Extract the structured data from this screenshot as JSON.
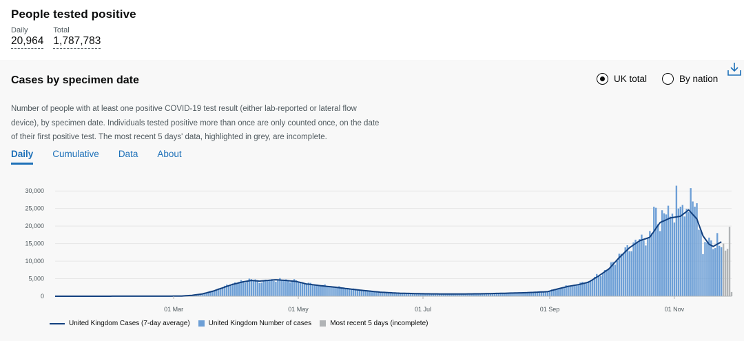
{
  "headline": {
    "title": "People tested positive",
    "daily_label": "Daily",
    "daily_value": "20,964",
    "total_label": "Total",
    "total_value": "1,787,783"
  },
  "card": {
    "title": "Cases by specimen date",
    "description": "Number of people with at least one positive COVID-19 test result (either lab-reported or lateral flow device), by specimen date. Individuals tested positive more than once are only counted once, on the date of their first positive test. The most recent 5 days' data, highlighted in grey, are incomplete.",
    "radio_uk": "UK total",
    "radio_nation": "By nation",
    "download_icon": "download-icon"
  },
  "tabs": [
    {
      "label": "Daily",
      "active": true
    },
    {
      "label": "Cumulative",
      "active": false
    },
    {
      "label": "Data",
      "active": false
    },
    {
      "label": "About",
      "active": false
    }
  ],
  "colors": {
    "bar": "#6d9fd6",
    "line": "#12407f",
    "incomplete": "#b1b4b6"
  },
  "chart_data": {
    "type": "bar",
    "title": "",
    "xlabel": "",
    "ylabel": "",
    "ylim": [
      0,
      32000
    ],
    "x_range": [
      "2020-01-03",
      "2020-11-24"
    ],
    "yticks": [
      "0",
      "5,000",
      "10,000",
      "15,000",
      "20,000",
      "25,000",
      "30,000"
    ],
    "ytick_values": [
      0,
      5000,
      10000,
      15000,
      20000,
      25000,
      30000
    ],
    "xticks": [
      {
        "date": "2020-03-01",
        "label": "01 Mar"
      },
      {
        "date": "2020-05-01",
        "label": "01 May"
      },
      {
        "date": "2020-07-01",
        "label": "01 Jul"
      },
      {
        "date": "2020-09-01",
        "label": "01 Sep"
      },
      {
        "date": "2020-11-01",
        "label": "01 Nov"
      }
    ],
    "daily_anchors": [
      [
        "2020-01-03",
        0
      ],
      [
        "2020-02-28",
        20
      ],
      [
        "2020-03-05",
        60
      ],
      [
        "2020-03-10",
        250
      ],
      [
        "2020-03-15",
        700
      ],
      [
        "2020-03-20",
        1500
      ],
      [
        "2020-03-25",
        2600
      ],
      [
        "2020-03-30",
        3600
      ],
      [
        "2020-04-04",
        4300
      ],
      [
        "2020-04-08",
        4800
      ],
      [
        "2020-04-12",
        4200
      ],
      [
        "2020-04-16",
        4500
      ],
      [
        "2020-04-20",
        4700
      ],
      [
        "2020-04-25",
        4600
      ],
      [
        "2020-04-30",
        4300
      ],
      [
        "2020-05-05",
        3600
      ],
      [
        "2020-05-12",
        3100
      ],
      [
        "2020-05-20",
        2600
      ],
      [
        "2020-05-30",
        1900
      ],
      [
        "2020-06-10",
        1200
      ],
      [
        "2020-06-20",
        900
      ],
      [
        "2020-07-01",
        750
      ],
      [
        "2020-07-15",
        650
      ],
      [
        "2020-07-30",
        750
      ],
      [
        "2020-08-10",
        900
      ],
      [
        "2020-08-20",
        1050
      ],
      [
        "2020-08-31",
        1400
      ],
      [
        "2020-09-05",
        2200
      ],
      [
        "2020-09-10",
        2900
      ],
      [
        "2020-09-15",
        3400
      ],
      [
        "2020-09-20",
        4200
      ],
      [
        "2020-09-25",
        6000
      ],
      [
        "2020-09-30",
        8000
      ],
      [
        "2020-10-05",
        11500
      ],
      [
        "2020-10-10",
        14000
      ],
      [
        "2020-10-15",
        16000
      ],
      [
        "2020-10-20",
        17000
      ],
      [
        "2020-10-25",
        21000
      ],
      [
        "2020-10-30",
        22500
      ],
      [
        "2020-11-04",
        23000
      ],
      [
        "2020-11-08",
        24500
      ],
      [
        "2020-11-12",
        22000
      ],
      [
        "2020-11-15",
        17500
      ],
      [
        "2020-11-18",
        15000
      ],
      [
        "2020-11-20",
        14500
      ],
      [
        "2020-11-24",
        14800
      ]
    ],
    "average_anchors": [
      [
        "2020-01-03",
        0
      ],
      [
        "2020-02-28",
        20
      ],
      [
        "2020-03-05",
        60
      ],
      [
        "2020-03-10",
        250
      ],
      [
        "2020-03-15",
        650
      ],
      [
        "2020-03-20",
        1400
      ],
      [
        "2020-03-25",
        2400
      ],
      [
        "2020-03-30",
        3400
      ],
      [
        "2020-04-04",
        4100
      ],
      [
        "2020-04-08",
        4500
      ],
      [
        "2020-04-12",
        4300
      ],
      [
        "2020-04-16",
        4500
      ],
      [
        "2020-04-20",
        4700
      ],
      [
        "2020-04-25",
        4500
      ],
      [
        "2020-04-30",
        4200
      ],
      [
        "2020-05-05",
        3500
      ],
      [
        "2020-05-12",
        3000
      ],
      [
        "2020-05-20",
        2500
      ],
      [
        "2020-05-30",
        1800
      ],
      [
        "2020-06-10",
        1150
      ],
      [
        "2020-06-20",
        850
      ],
      [
        "2020-07-01",
        700
      ],
      [
        "2020-07-15",
        620
      ],
      [
        "2020-07-30",
        700
      ],
      [
        "2020-08-10",
        850
      ],
      [
        "2020-08-20",
        1000
      ],
      [
        "2020-08-31",
        1300
      ],
      [
        "2020-09-05",
        2100
      ],
      [
        "2020-09-10",
        2800
      ],
      [
        "2020-09-15",
        3300
      ],
      [
        "2020-09-20",
        4000
      ],
      [
        "2020-09-25",
        5800
      ],
      [
        "2020-09-30",
        7800
      ],
      [
        "2020-10-05",
        11000
      ],
      [
        "2020-10-10",
        13800
      ],
      [
        "2020-10-15",
        15800
      ],
      [
        "2020-10-20",
        16800
      ],
      [
        "2020-10-25",
        21000
      ],
      [
        "2020-10-30",
        22300
      ],
      [
        "2020-11-04",
        22800
      ],
      [
        "2020-11-08",
        24600
      ],
      [
        "2020-11-12",
        22000
      ],
      [
        "2020-11-15",
        17200
      ],
      [
        "2020-11-18",
        14800
      ],
      [
        "2020-11-20",
        14200
      ],
      [
        "2020-11-24",
        15500
      ]
    ],
    "daily_spikes": [
      {
        "date": "2020-10-22",
        "value": 25500
      },
      {
        "date": "2020-10-23",
        "value": 25200
      },
      {
        "date": "2020-10-26",
        "value": 24500
      },
      {
        "date": "2020-10-29",
        "value": 25800
      },
      {
        "date": "2020-11-02",
        "value": 31500
      },
      {
        "date": "2020-11-03",
        "value": 25000
      },
      {
        "date": "2020-11-05",
        "value": 26000
      },
      {
        "date": "2020-11-09",
        "value": 30800
      },
      {
        "date": "2020-11-10",
        "value": 27000
      },
      {
        "date": "2020-11-12",
        "value": 26500
      },
      {
        "date": "2020-11-15",
        "value": 12000
      },
      {
        "date": "2020-11-22",
        "value": 18000
      }
    ],
    "incomplete": [
      {
        "date": "2020-11-25",
        "value": 15000
      },
      {
        "date": "2020-11-26",
        "value": 13000
      },
      {
        "date": "2020-11-27",
        "value": 13500
      },
      {
        "date": "2020-11-28",
        "value": 19800
      },
      {
        "date": "2020-11-29",
        "value": 1200
      }
    ],
    "series": [
      {
        "name": "United Kingdom Cases (7-day average)"
      },
      {
        "name": "United Kingdom Number of cases"
      },
      {
        "name": "Most recent 5 days (incomplete)"
      }
    ],
    "legend_position": "bottom-left",
    "grid": true
  }
}
